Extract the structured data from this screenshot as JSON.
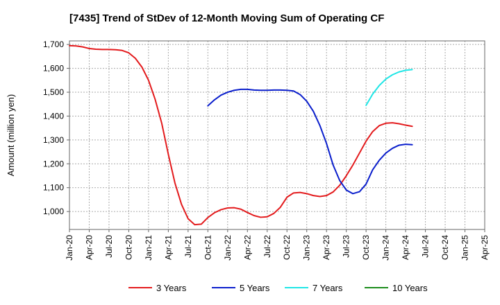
{
  "chart_data": {
    "type": "line",
    "title": "[7435]  Trend of StDev of 12-Month Moving Sum of Operating CF",
    "ylabel": "Amount (million yen)",
    "xlabel": "",
    "ylim": [
      925,
      1715
    ],
    "yticks": [
      1000,
      1100,
      1200,
      1300,
      1400,
      1500,
      1600,
      1700
    ],
    "ytick_labels": [
      "1,000",
      "1,100",
      "1,200",
      "1,300",
      "1,400",
      "1,500",
      "1,600",
      "1,700"
    ],
    "x_tick_labels": [
      "Jan-20",
      "Apr-20",
      "Jul-20",
      "Oct-20",
      "Jan-21",
      "Apr-21",
      "Jul-21",
      "Oct-21",
      "Jan-22",
      "Apr-22",
      "Jul-22",
      "Oct-22",
      "Jan-23",
      "Apr-23",
      "Jul-23",
      "Oct-23",
      "Jan-24",
      "Apr-24",
      "Jul-24",
      "Oct-24",
      "Jan-25",
      "Apr-25"
    ],
    "grid": true,
    "legend_position": "bottom",
    "series": [
      {
        "name": "3 Years",
        "color": "#e31a1c",
        "start": "Jan-20",
        "values": [
          1695,
          1694,
          1690,
          1683,
          1680,
          1679,
          1679,
          1678,
          1675,
          1665,
          1642,
          1605,
          1550,
          1470,
          1370,
          1240,
          1120,
          1030,
          970,
          945,
          947,
          975,
          995,
          1008,
          1015,
          1016,
          1010,
          996,
          983,
          976,
          978,
          992,
          1018,
          1060,
          1078,
          1080,
          1075,
          1067,
          1063,
          1067,
          1082,
          1110,
          1150,
          1195,
          1245,
          1295,
          1335,
          1360,
          1370,
          1372,
          1368,
          1362,
          1357
        ]
      },
      {
        "name": "5 Years",
        "color": "#0a1ecc",
        "start": "Oct-21",
        "values": [
          1443,
          1468,
          1488,
          1500,
          1508,
          1512,
          1512,
          1509,
          1508,
          1508,
          1509,
          1509,
          1508,
          1505,
          1490,
          1462,
          1420,
          1360,
          1285,
          1195,
          1130,
          1090,
          1075,
          1083,
          1115,
          1175,
          1215,
          1245,
          1265,
          1278,
          1282,
          1280
        ]
      },
      {
        "name": "7 Years",
        "color": "#1ee6e6",
        "start": "Oct-23",
        "values": [
          1445,
          1492,
          1528,
          1555,
          1573,
          1585,
          1592,
          1595
        ]
      },
      {
        "name": "10 Years",
        "color": "#1a8c1a",
        "start": "",
        "values": []
      }
    ]
  }
}
